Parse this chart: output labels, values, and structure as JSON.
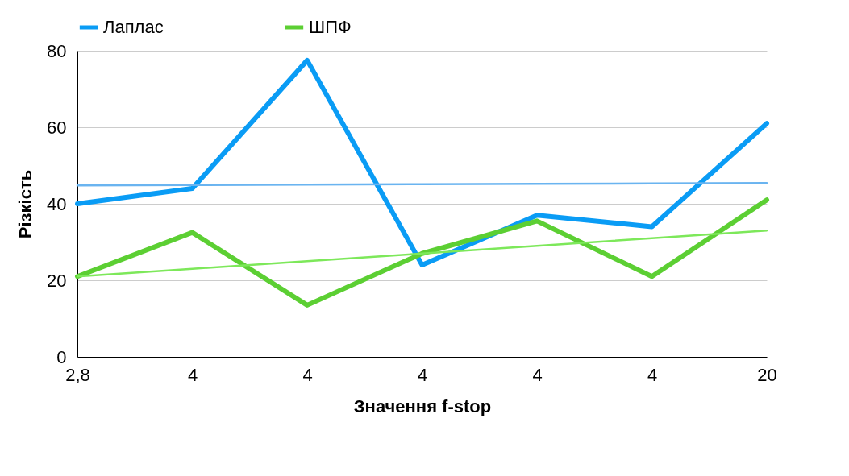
{
  "chart_data": {
    "type": "line",
    "xlabel": "Значення f-stop",
    "ylabel": "Різкість",
    "categories": [
      "2,8",
      "4",
      "4",
      "4",
      "4",
      "4",
      "20"
    ],
    "ylim": [
      0,
      80
    ],
    "yticks": [
      0,
      20,
      40,
      60,
      80
    ],
    "grid": "y",
    "legend": "top",
    "line_style": "solid",
    "marker": "none",
    "series": [
      {
        "name": "Лаплас",
        "color": "#0a9cf5",
        "values": [
          40,
          44,
          77.5,
          24,
          37,
          34,
          61
        ]
      },
      {
        "name": "ШПФ",
        "color": "#5ccf33",
        "values": [
          21,
          32.5,
          13.5,
          27,
          35.5,
          21,
          41
        ]
      },
      {
        "type": "line",
        "color": "#6ab4f0",
        "values": [
          44.8,
          44.9,
          45,
          45.1,
          45.2,
          45.3,
          45.4
        ]
      },
      {
        "type": "line",
        "color": "#7de85a",
        "values": [
          21,
          23,
          25,
          27,
          29,
          31,
          33
        ]
      }
    ]
  }
}
